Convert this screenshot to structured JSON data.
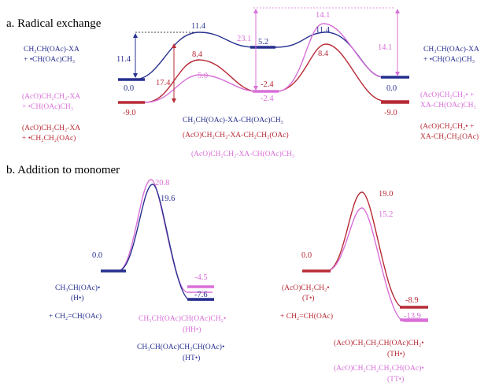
{
  "colors": {
    "blue": "#27308f",
    "pink": "#d870d8",
    "red": "#b72b36",
    "black": "#000000"
  },
  "section_a": {
    "title": "a. Radical exchange",
    "left_labels": {
      "blue": [
        "CH₃CH(OAc)-XA",
        "+ •CH(OAc)CH₃"
      ],
      "pink": [
        "(AcO)CH₂CH₂-XA",
        "+ •CH(OAc)CH₃"
      ],
      "red": [
        "(AcO)CH₂CH₂-XA",
        "+ •CH₂CH₂(OAc)"
      ]
    },
    "right_labels": {
      "blue": [
        "CH₃CH(OAc)-XA",
        "+ •CH(OAc)CH₃"
      ],
      "pink": [
        "(AcO)CH₂CH₂• +",
        "XA-CH(OAc)CH₃"
      ],
      "red": [
        "(AcO)CH₂CH₂• +",
        "XA-CH₂CH₂(OAc)"
      ]
    },
    "middle_labels": {
      "blue": "CH₃CH(OAc)-XA-CH(OAc)CH₃",
      "red": "(AcO)CH₂CH₂-XA-CH₂CH₂(OAc)",
      "pink": "(AcO)CH₂CH₂-XA-CH(OAc)CH₃"
    },
    "energies": {
      "start_blue": "0.0",
      "start_red": "-9.0",
      "ts1_blue": "11.4",
      "ts1_red": "8.4",
      "ts1_pink": "5.0",
      "mid_blue": "5.2",
      "mid_pink_upper": "-2.4",
      "mid_pink_lower": "-2.4",
      "ts2_pink": "14.1",
      "ts2_blue": "11.4",
      "ts2_red": "8.4",
      "end_blue": "0.0",
      "end_red": "-9.0"
    },
    "barriers": {
      "left_blue": "11.4",
      "left_red": "17.4",
      "mid_pink": "23.1",
      "right_pink": "14.1"
    }
  },
  "section_b": {
    "title": "b. Addition to monomer",
    "left": {
      "start_energy": "0.0",
      "start_label": [
        "CH₃CH(OAc)•",
        "(H•)"
      ],
      "monomer": "+ CH₂=CH(OAc)",
      "ts_pink": "20.8",
      "ts_blue": "19.6",
      "product_pink_energy": "-4.5",
      "product_blue_energy": "-7.6",
      "product_pink_label": [
        "CH₃CH(OAc)CH(OAc)CH₂•",
        "(HH•)"
      ],
      "product_blue_label": [
        "CH₃CH(OAc)CH₂CH(OAc)•",
        "(HT•)"
      ]
    },
    "right": {
      "start_energy": "0.0",
      "start_label": [
        "(AcO)CH₂CH₂•",
        "(T•)"
      ],
      "monomer": "+ CH₂=CH(OAc)",
      "ts_red": "19.0",
      "ts_pink": "15.2",
      "product_red_energy": "-8.9",
      "product_pink_energy": "-13.9",
      "product_red_label": [
        "(AcO)CH₂CH₂CH(OAc)CH₂•",
        "(TH•)"
      ],
      "product_pink_label": [
        "(AcO)CH₂CH₂CH₂CH(OAc)•",
        "(TT•)"
      ]
    }
  }
}
